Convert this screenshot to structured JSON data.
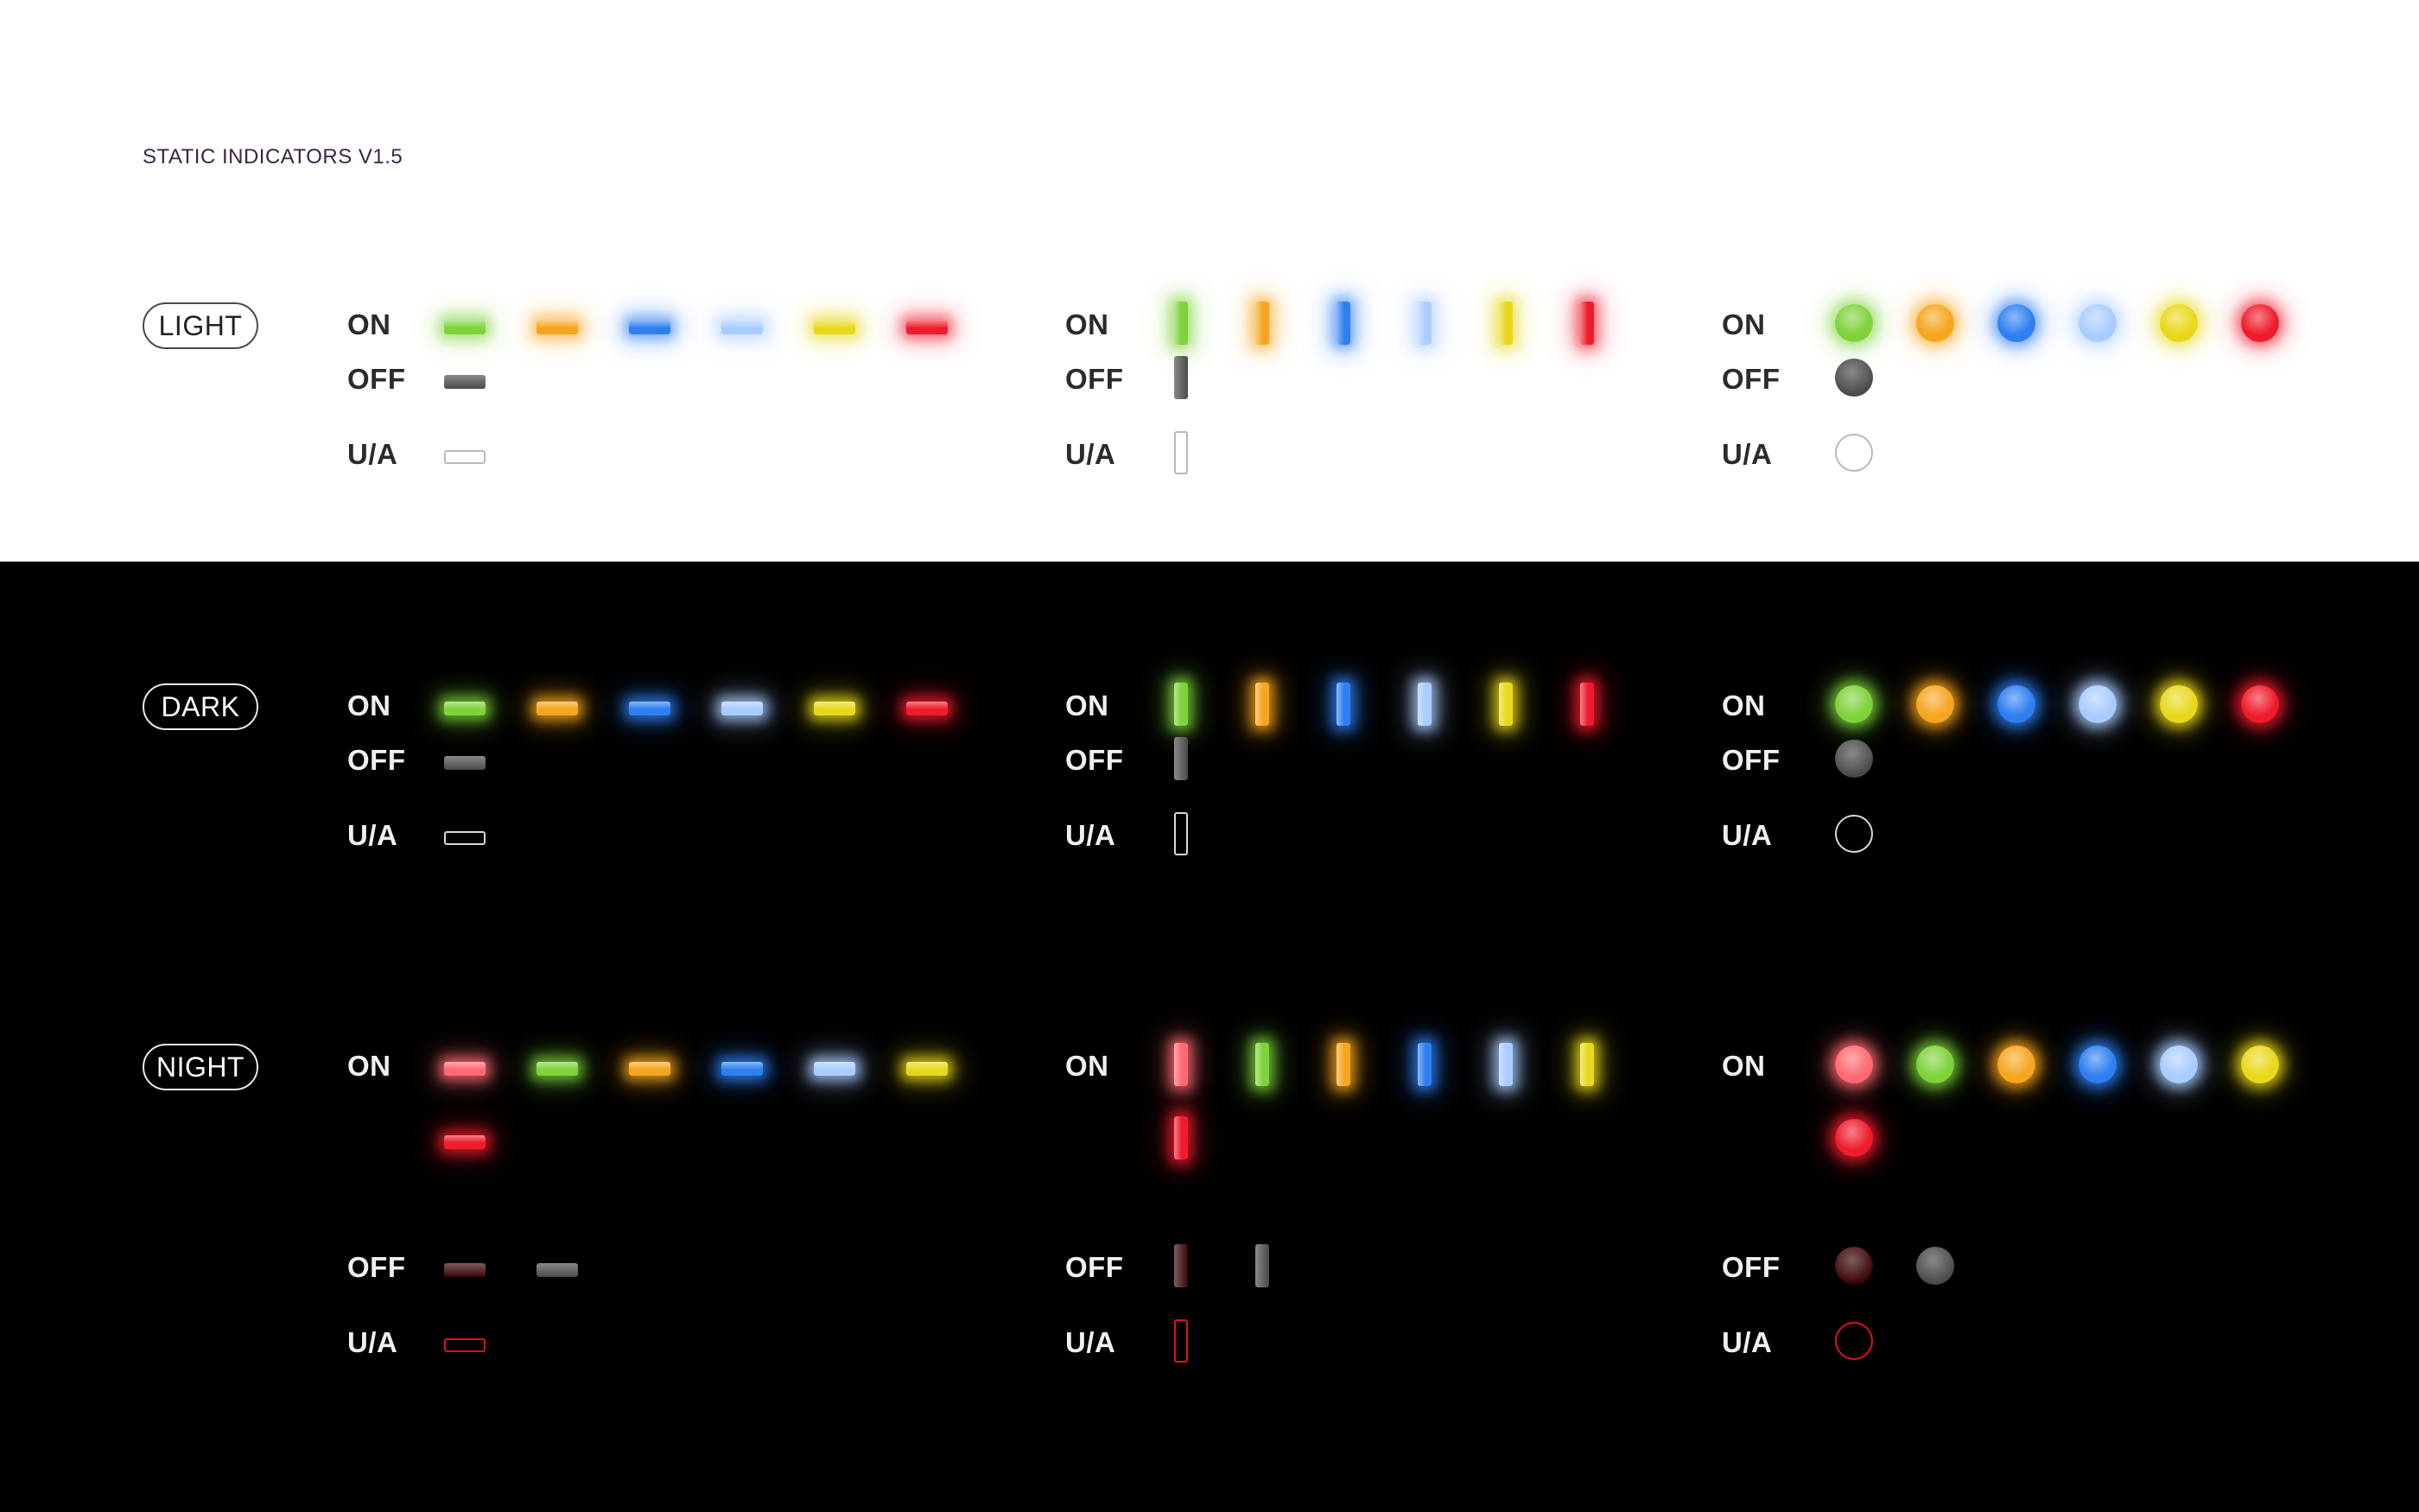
{
  "title": "STATIC INDICATORS V1.5",
  "colors": {
    "light_bg": "#ffffff",
    "dark_bg": "#000000",
    "green": "#7ed23a",
    "orange": "#f5a51f",
    "blue": "#2f7ff0",
    "lightblue": "#a9ccff",
    "yellow": "#e8d81c",
    "red": "#ee1c2c",
    "salmon": "#ff6a72",
    "off_gray": "#4a4a4a",
    "off_darkred": "#3a0607",
    "ua_red": "#e01020"
  },
  "themes": [
    {
      "name": "LIGHT",
      "on_colors": [
        "green",
        "orange",
        "blue",
        "lightblue",
        "yellow",
        "red"
      ],
      "extra_on_colors": [],
      "off_colors": [
        "off_gray"
      ],
      "ua_color": "#b8b8b8"
    },
    {
      "name": "DARK",
      "on_colors": [
        "green",
        "orange",
        "blue",
        "lightblue",
        "yellow",
        "red"
      ],
      "extra_on_colors": [],
      "off_colors": [
        "off_gray"
      ],
      "ua_color": "#d8d8d8"
    },
    {
      "name": "NIGHT",
      "on_colors": [
        "salmon",
        "green",
        "orange",
        "blue",
        "lightblue",
        "yellow"
      ],
      "extra_on_colors": [
        "red"
      ],
      "off_colors": [
        "off_darkred",
        "off_gray"
      ],
      "ua_color": "#e01020"
    }
  ],
  "state_labels": {
    "on": "ON",
    "off": "OFF",
    "ua": "U/A"
  },
  "shapes": [
    "horizontal-bar",
    "vertical-bar",
    "circle"
  ]
}
